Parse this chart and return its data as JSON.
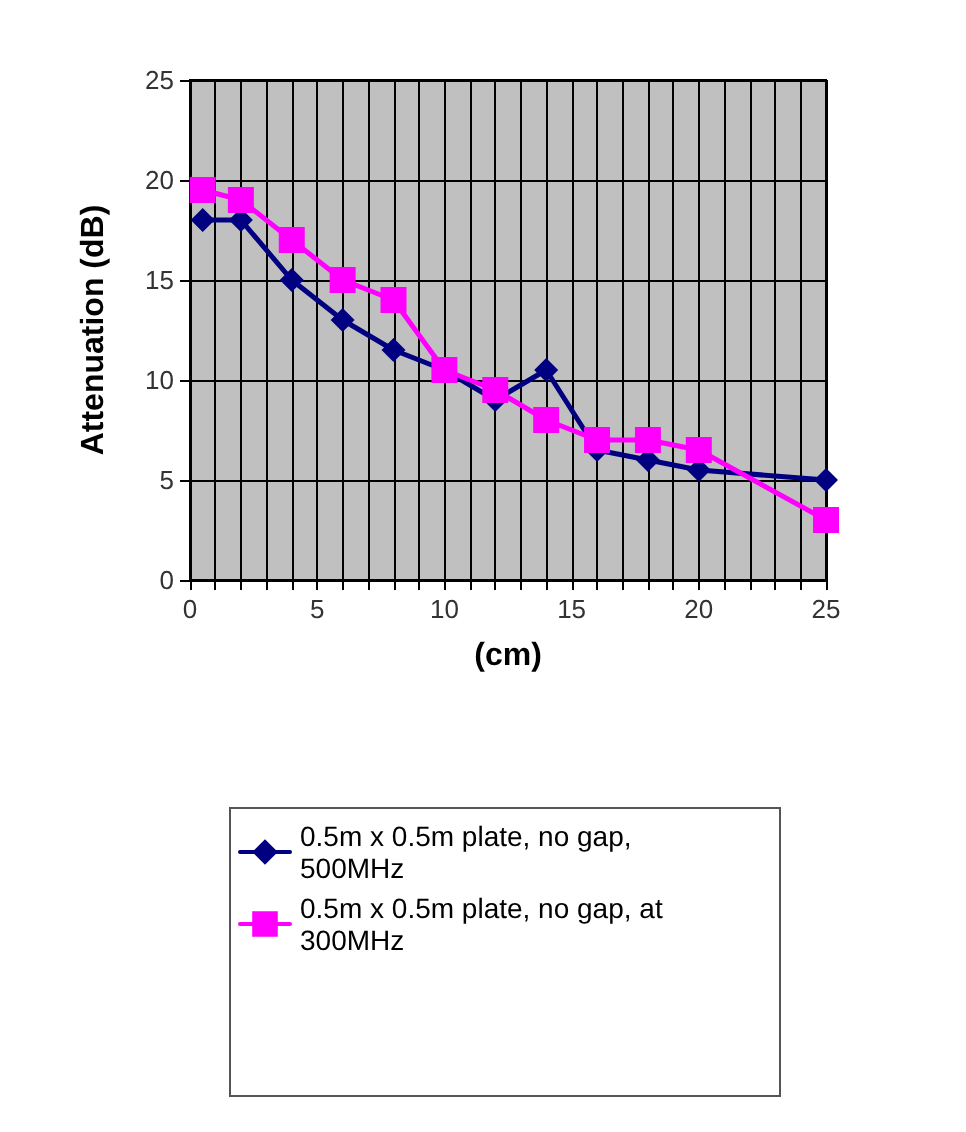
{
  "chart_data": {
    "type": "line",
    "xlabel": "(cm)",
    "ylabel": "Attenuation (dB)",
    "xlim": [
      0,
      25
    ],
    "xticks": [
      0,
      {
        "value": 1,
        "label": null
      },
      {
        "value": 2,
        "label": null
      },
      {
        "value": 3,
        "label": null
      },
      {
        "value": 4,
        "label": null
      },
      5,
      {
        "value": 6,
        "label": null
      },
      {
        "value": 7,
        "label": null
      },
      {
        "value": 8,
        "label": null
      },
      {
        "value": 9,
        "label": null
      },
      10,
      {
        "value": 11,
        "label": null
      },
      {
        "value": 12,
        "label": null
      },
      {
        "value": 13,
        "label": null
      },
      {
        "value": 14,
        "label": null
      },
      15,
      {
        "value": 16,
        "label": null
      },
      {
        "value": 17,
        "label": null
      },
      {
        "value": 18,
        "label": null
      },
      {
        "value": 19,
        "label": null
      },
      20,
      {
        "value": 21,
        "label": null
      },
      {
        "value": 22,
        "label": null
      },
      {
        "value": 23,
        "label": null
      },
      {
        "value": 24,
        "label": null
      },
      25
    ],
    "ylim": [
      0,
      25
    ],
    "yticks": [
      0,
      5,
      10,
      15,
      20,
      25
    ],
    "grid": true,
    "legend": "bottom",
    "line_style": "solid",
    "x": [
      0.5,
      2,
      4,
      6,
      8,
      10,
      12,
      14,
      16,
      18,
      20,
      25
    ],
    "series": [
      {
        "name": "0.5m x 0.5m plate, no gap, 500MHz",
        "color": "#000080",
        "marker": "diamond",
        "values": [
          18,
          18,
          15,
          13,
          11.5,
          10.5,
          9,
          10.5,
          6.5,
          6,
          5.5,
          5
        ]
      },
      {
        "name": "0.5m x 0.5m plate, no gap, at 300MHz",
        "color": "#ff00ff",
        "marker": "square",
        "values": [
          19.5,
          19,
          17,
          15,
          14,
          10.5,
          9.5,
          8,
          7,
          7,
          6.5,
          3
        ]
      }
    ]
  }
}
